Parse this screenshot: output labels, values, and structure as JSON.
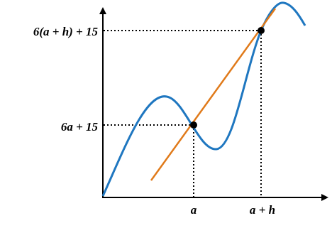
{
  "labels": {
    "y_upper": "6(a + h) + 15",
    "y_lower": "6a + 15",
    "x_left": "a",
    "x_right": "a + h"
  }
}
